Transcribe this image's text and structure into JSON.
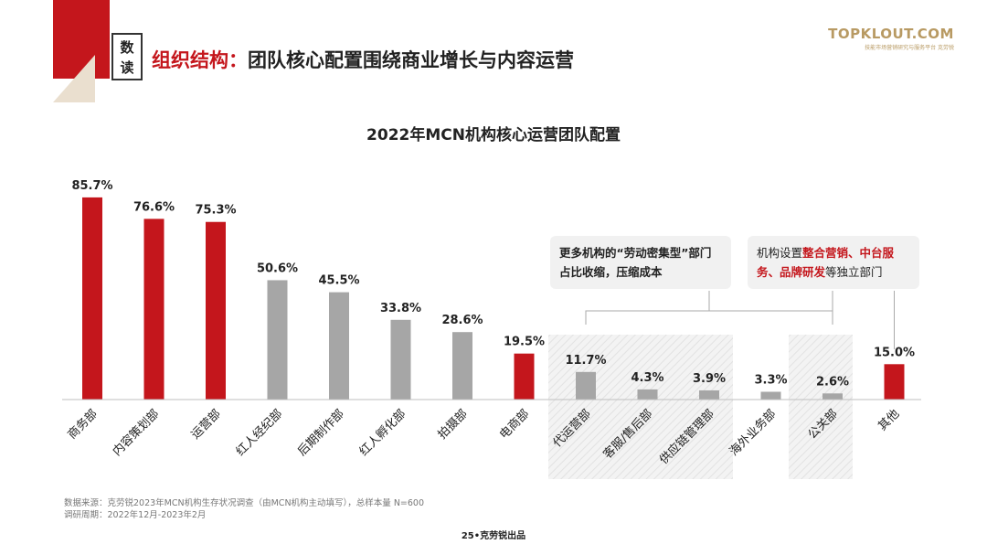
{
  "header": {
    "badge_line1": "数",
    "badge_line2": "读",
    "headline_accent": "组织结构：",
    "headline_rest": "团队核心配置围绕商业增长与内容运营"
  },
  "logo": {
    "main": "TOPKLOUT.COM",
    "sub": "技能市场营销研究与服务平台 克劳锐"
  },
  "colors": {
    "red": "#c4161c",
    "gray": "#a6a6a6",
    "callout_bg": "#f1f1f1"
  },
  "chart_data": {
    "type": "bar",
    "title": "2022年MCN机构核心运营团队配置",
    "categories": [
      "商务部",
      "内容策划部",
      "运营部",
      "红人经纪部",
      "后期制作部",
      "红人孵化部",
      "拍摄部",
      "电商部",
      "代运营部",
      "客服/售后部",
      "供应链管理部",
      "海外业务部",
      "公关部",
      "其他"
    ],
    "values": [
      85.7,
      76.6,
      75.3,
      50.6,
      45.5,
      33.8,
      28.6,
      19.5,
      11.7,
      4.3,
      3.9,
      3.3,
      2.6,
      15.0
    ],
    "value_labels": [
      "85.7%",
      "76.6%",
      "75.3%",
      "50.6%",
      "45.5%",
      "33.8%",
      "28.6%",
      "19.5%",
      "11.7%",
      "4.3%",
      "3.9%",
      "3.3%",
      "2.6%",
      "15.0%"
    ],
    "highlight": [
      true,
      true,
      true,
      false,
      false,
      false,
      false,
      true,
      false,
      false,
      false,
      false,
      false,
      true
    ],
    "ylim": [
      0,
      90
    ],
    "grid": false,
    "legend": "none"
  },
  "callouts": {
    "labor": {
      "text": "更多机构的“劳动密集型”部门占比收缩，压缩成本"
    },
    "independent": {
      "prefix": "机构设置",
      "highlight1": "整合营销",
      "sep1": "、",
      "highlight2": "中台服务",
      "sep2": "、",
      "highlight3": "品牌研发",
      "suffix": "等独立部门"
    }
  },
  "source": {
    "line1": "数据来源：克劳锐2023年MCN机构生存状况调查（由MCN机构主动填写），总样本量 N=600",
    "line2": "调研周期：2022年12月-2023年2月"
  },
  "footer": {
    "page": "25•克劳锐出品"
  }
}
